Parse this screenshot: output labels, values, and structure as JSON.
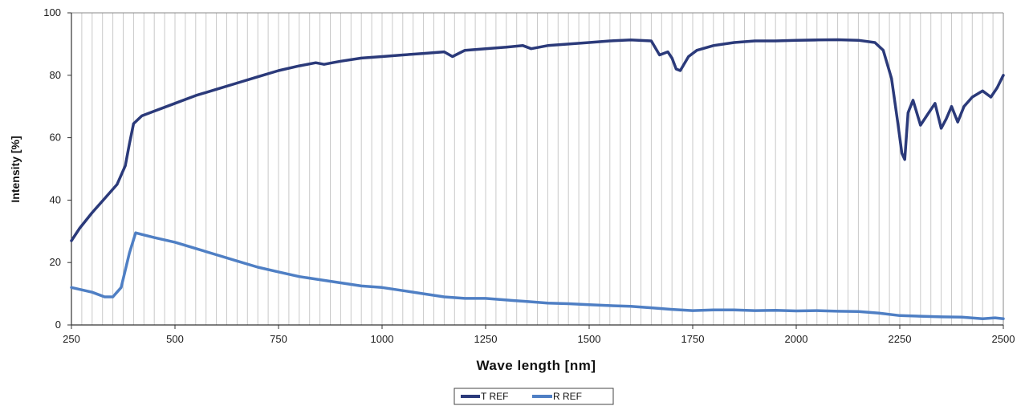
{
  "chart_data": {
    "type": "line",
    "xlabel": "Wave length [nm]",
    "ylabel": "Intensity [%]",
    "xlim": [
      250,
      2500
    ],
    "ylim": [
      0,
      100
    ],
    "x_ticks": [
      250,
      500,
      750,
      1000,
      1250,
      1500,
      1750,
      2000,
      2250,
      2500
    ],
    "y_ticks": [
      0,
      20,
      40,
      60,
      80,
      100
    ],
    "grid": "vertical",
    "legend_position": "bottom-center",
    "series": [
      {
        "name": "T REF",
        "color": "#2b3a7a",
        "x": [
          250,
          270,
          300,
          330,
          360,
          380,
          390,
          400,
          420,
          450,
          500,
          550,
          600,
          650,
          700,
          750,
          800,
          840,
          860,
          880,
          900,
          950,
          1000,
          1050,
          1100,
          1150,
          1170,
          1200,
          1250,
          1300,
          1340,
          1360,
          1400,
          1450,
          1500,
          1550,
          1600,
          1650,
          1670,
          1690,
          1700,
          1710,
          1720,
          1740,
          1760,
          1800,
          1850,
          1900,
          1950,
          2000,
          2050,
          2100,
          2150,
          2190,
          2210,
          2230,
          2245,
          2255,
          2262,
          2270,
          2282,
          2300,
          2315,
          2335,
          2350,
          2362,
          2375,
          2390,
          2405,
          2425,
          2450,
          2470,
          2485,
          2500
        ],
        "y": [
          27,
          31,
          36,
          40.5,
          45,
          51,
          58,
          64.5,
          67,
          68.5,
          71,
          73.5,
          75.5,
          77.5,
          79.5,
          81.5,
          83,
          84,
          83.5,
          84,
          84.5,
          85.5,
          86,
          86.5,
          87,
          87.5,
          86,
          88,
          88.5,
          89,
          89.5,
          88.5,
          89.5,
          90,
          90.5,
          91,
          91.3,
          91,
          86.5,
          87.5,
          85.5,
          82,
          81.5,
          86,
          88,
          89.5,
          90.5,
          91,
          91,
          91.2,
          91.3,
          91.4,
          91.2,
          90.5,
          88,
          79,
          65,
          55,
          53,
          68,
          72,
          64,
          67,
          71,
          63,
          66,
          70,
          65,
          70,
          73,
          75,
          73,
          76,
          80
        ]
      },
      {
        "name": "R REF",
        "color": "#4f7fc4",
        "x": [
          250,
          300,
          330,
          350,
          370,
          390,
          405,
          420,
          450,
          500,
          550,
          600,
          650,
          700,
          750,
          800,
          850,
          900,
          950,
          1000,
          1050,
          1100,
          1150,
          1200,
          1250,
          1300,
          1350,
          1400,
          1450,
          1500,
          1550,
          1600,
          1650,
          1700,
          1750,
          1800,
          1850,
          1900,
          1950,
          2000,
          2050,
          2100,
          2150,
          2200,
          2250,
          2300,
          2350,
          2400,
          2450,
          2480,
          2500
        ],
        "y": [
          12,
          10.5,
          9,
          9,
          12,
          23,
          29.5,
          29,
          28,
          26.5,
          24.5,
          22.5,
          20.5,
          18.5,
          17,
          15.5,
          14.5,
          13.5,
          12.5,
          12,
          11,
          10,
          9,
          8.5,
          8.5,
          8,
          7.5,
          7,
          6.8,
          6.5,
          6.2,
          6,
          5.5,
          5,
          4.6,
          4.8,
          4.8,
          4.6,
          4.7,
          4.5,
          4.6,
          4.4,
          4.3,
          3.8,
          3,
          2.8,
          2.6,
          2.5,
          2,
          2.3,
          2
        ]
      }
    ]
  }
}
